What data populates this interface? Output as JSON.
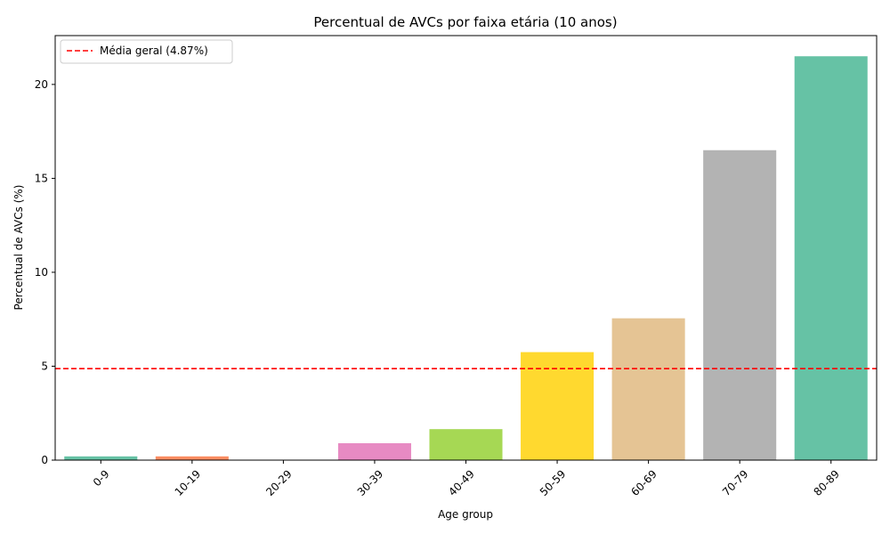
{
  "chart_data": {
    "type": "bar",
    "title": "Percentual de AVCs por faixa etária (10 anos)",
    "xlabel": "Age group",
    "ylabel": "Percentual de AVCs (%)",
    "categories": [
      "0-9",
      "10-19",
      "20-29",
      "30-39",
      "40-49",
      "50-59",
      "60-69",
      "70-79",
      "80-89"
    ],
    "values": [
      0.2,
      0.2,
      0.0,
      0.9,
      1.65,
      5.75,
      7.55,
      16.5,
      21.5
    ],
    "colors": [
      "#66c2a5",
      "#fc8d62",
      "#8da0cb",
      "#e78ac3",
      "#a6d854",
      "#ffd92f",
      "#e5c494",
      "#b3b3b3",
      "#66c2a5"
    ],
    "ylim": [
      0,
      22.6
    ],
    "yticks": [
      0,
      5,
      10,
      15,
      20
    ],
    "reference_line": {
      "value": 4.87,
      "label": "Média geral (4.87%)",
      "color": "#ff0000",
      "style": "dashed"
    },
    "legend_position": "top-left",
    "grid": false
  }
}
